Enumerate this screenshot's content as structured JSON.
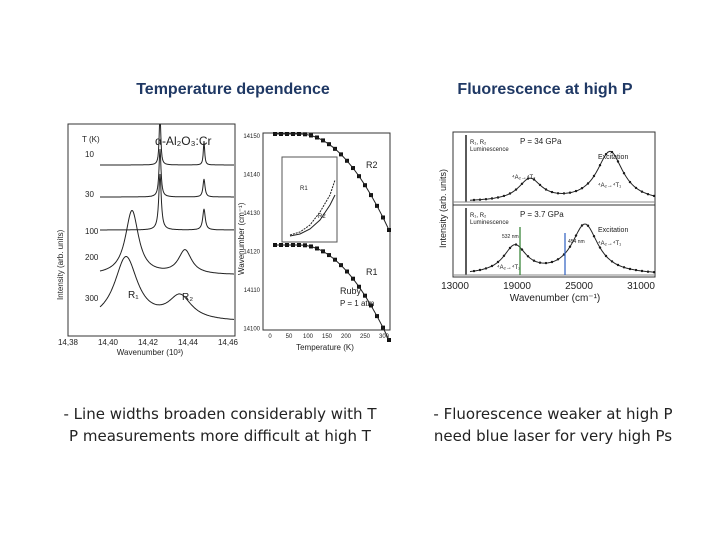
{
  "left": {
    "heading": "Temperature dependence",
    "caption": [
      "- Line widths broaden considerably with T",
      "P measurements more difficult at high T"
    ],
    "spectra": {
      "formula": "α-Al₂O₃:Cr",
      "t_header": "T (K)",
      "temps": [
        "10",
        "30",
        "100",
        "200",
        "300"
      ],
      "peaks": [
        "R₁",
        "R₂"
      ],
      "ylabel": "Intensity (arb. units)",
      "xlabel": "Wavenumber (10³)",
      "xticks": [
        "14,38",
        "14,40",
        "14,42",
        "14,44",
        "14,46"
      ]
    },
    "shift": {
      "ylabel": "Wavenumber (cm⁻¹)",
      "yticks": [
        "14150",
        "14140",
        "14130",
        "14120",
        "14110",
        "14100"
      ],
      "xlabel": "Temperature (K)",
      "xticks": [
        "0",
        "50",
        "100",
        "150",
        "200",
        "250",
        "300"
      ],
      "curves": [
        "R2",
        "R1"
      ],
      "sample": "Ruby",
      "pressure": "P = 1 atm",
      "inset_labels": [
        "R1",
        "R2"
      ]
    }
  },
  "right": {
    "heading": "Fluorescence at high P",
    "caption": [
      "- Fluorescence weaker at high P",
      "need blue laser for very high Ps"
    ],
    "figure": {
      "ylabel": "Intensity (arb. units)",
      "xlabel": "Wavenumber (cm⁻¹)",
      "xticks": [
        "13000",
        "19000",
        "25000",
        "31000"
      ],
      "panels": [
        {
          "pressure": "P = 34 GPa",
          "luminescence": [
            "R₁, R₂",
            "Luminescence"
          ],
          "excitation": "Excitation",
          "bands": [
            "⁴A₂→⁴T₂",
            "⁴A₂→⁴T₁"
          ]
        },
        {
          "pressure": "P = 3.7 GPa",
          "luminescence": [
            "R₁, R₂",
            "Luminescence"
          ],
          "excitation": "Excitation",
          "bands": [
            "⁴A₂→⁴T₂",
            "⁴A₂→⁴T₁"
          ],
          "lasers": [
            "532 nm",
            "454 nm"
          ]
        }
      ]
    }
  }
}
